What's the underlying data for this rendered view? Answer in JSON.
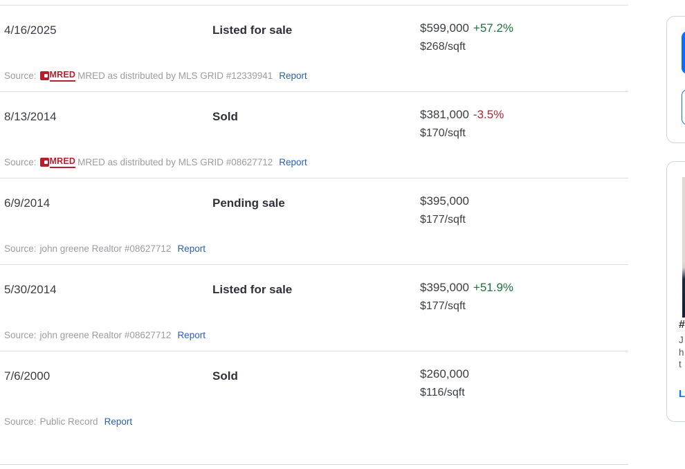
{
  "colors": {
    "accent_blue": "#0b6efd",
    "link_blue": "#2a5db4",
    "positive_green": "#1e713b",
    "negative_red": "#b02433",
    "mred_red": "#b6202e",
    "divider_gray": "#dedee2",
    "source_text_gray": "#9c9ca3"
  },
  "history": {
    "rows": [
      {
        "date": "4/16/2025",
        "event": "Listed for sale",
        "price": "$599,000",
        "change": "+57.2%",
        "price_per_sqft": "$268/sqft",
        "source_prefix": "Source:",
        "source_logo": "MRED",
        "source_text": "MRED as distributed by MLS GRID #12339941",
        "report_label": "Report"
      },
      {
        "date": "8/13/2014",
        "event": "Sold",
        "price": "$381,000",
        "change": "-3.5%",
        "price_per_sqft": "$170/sqft",
        "source_prefix": "Source:",
        "source_logo": "MRED",
        "source_text": "MRED as distributed by MLS GRID #08627712",
        "report_label": "Report"
      },
      {
        "date": "6/9/2014",
        "event": "Pending sale",
        "price": "$395,000",
        "change": "",
        "price_per_sqft": "$177/sqft",
        "source_prefix": "Source:",
        "source_logo": "",
        "source_text": "john greene Realtor #08627712",
        "report_label": "Report"
      },
      {
        "date": "5/30/2014",
        "event": "Listed for sale",
        "price": "$395,000",
        "change": "+51.9%",
        "price_per_sqft": "$177/sqft",
        "source_prefix": "Source:",
        "source_logo": "",
        "source_text": "john greene Realtor #08627712",
        "report_label": "Report"
      },
      {
        "date": "7/6/2000",
        "event": "Sold",
        "price": "$260,000",
        "change": "",
        "price_per_sqft": "$116/sqft",
        "source_prefix": "Source:",
        "source_logo": "",
        "source_text": "Public Record",
        "report_label": "Report"
      }
    ]
  },
  "right_rail": {
    "agent_card": {
      "heading_fragment": "#",
      "line_fragments": [
        "J",
        "h",
        "t"
      ],
      "link_fragment": "L"
    }
  }
}
